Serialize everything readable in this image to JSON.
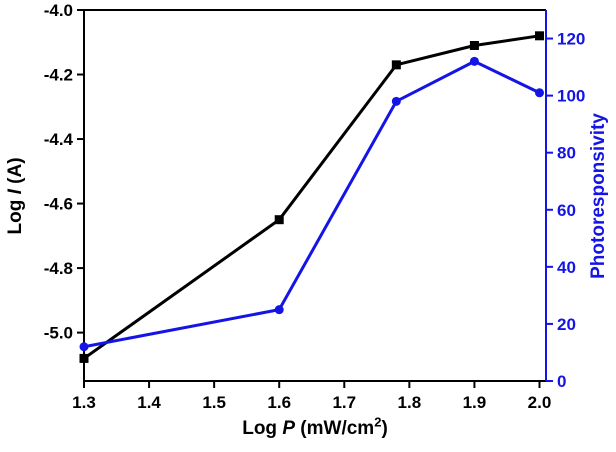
{
  "chart_data": {
    "type": "line",
    "title": "",
    "x": [
      1.3,
      1.6,
      1.78,
      1.9,
      2.0
    ],
    "series": [
      {
        "name": "Log I (A)",
        "axis": "left",
        "color": "#000000",
        "marker": "square",
        "values": [
          -5.08,
          -4.65,
          -4.17,
          -4.11,
          -4.08
        ]
      },
      {
        "name": "Photoresponsivity",
        "axis": "right",
        "color": "#1414e6",
        "marker": "circle",
        "values": [
          12,
          25,
          98,
          112,
          101
        ]
      }
    ],
    "xlabel": {
      "pre": "Log ",
      "italic": "P",
      "post": " (mW/cm",
      "sup": "2",
      "end": ")"
    },
    "ylabel_left": {
      "pre": "Log ",
      "italic": "I",
      "post": " (A)"
    },
    "ylabel_right": "Photoresponsivity",
    "x_ticks": [
      1.3,
      1.4,
      1.5,
      1.6,
      1.7,
      1.8,
      1.9,
      2.0
    ],
    "x_tick_labels": [
      "1.3",
      "1.4",
      "1.5",
      "1.6",
      "1.7",
      "1.8",
      "1.9",
      "2.0"
    ],
    "left_ticks": [
      -4.0,
      -4.2,
      -4.4,
      -4.6,
      -4.8,
      -5.0
    ],
    "left_tick_labels": [
      "-4.0",
      "-4.2",
      "-4.4",
      "-4.6",
      "-4.8",
      "-5.0"
    ],
    "right_ticks": [
      0,
      20,
      40,
      60,
      80,
      100,
      120
    ],
    "right_tick_labels": [
      "0",
      "20",
      "40",
      "60",
      "80",
      "100",
      "120"
    ],
    "xlim": [
      1.3,
      2.01
    ],
    "ylim_left": [
      -5.15,
      -4.0
    ],
    "ylim_right": [
      0,
      130
    ],
    "grid": false,
    "legend": "none",
    "colors": {
      "left_axis": "#000000",
      "right_axis": "#1414e6"
    }
  }
}
